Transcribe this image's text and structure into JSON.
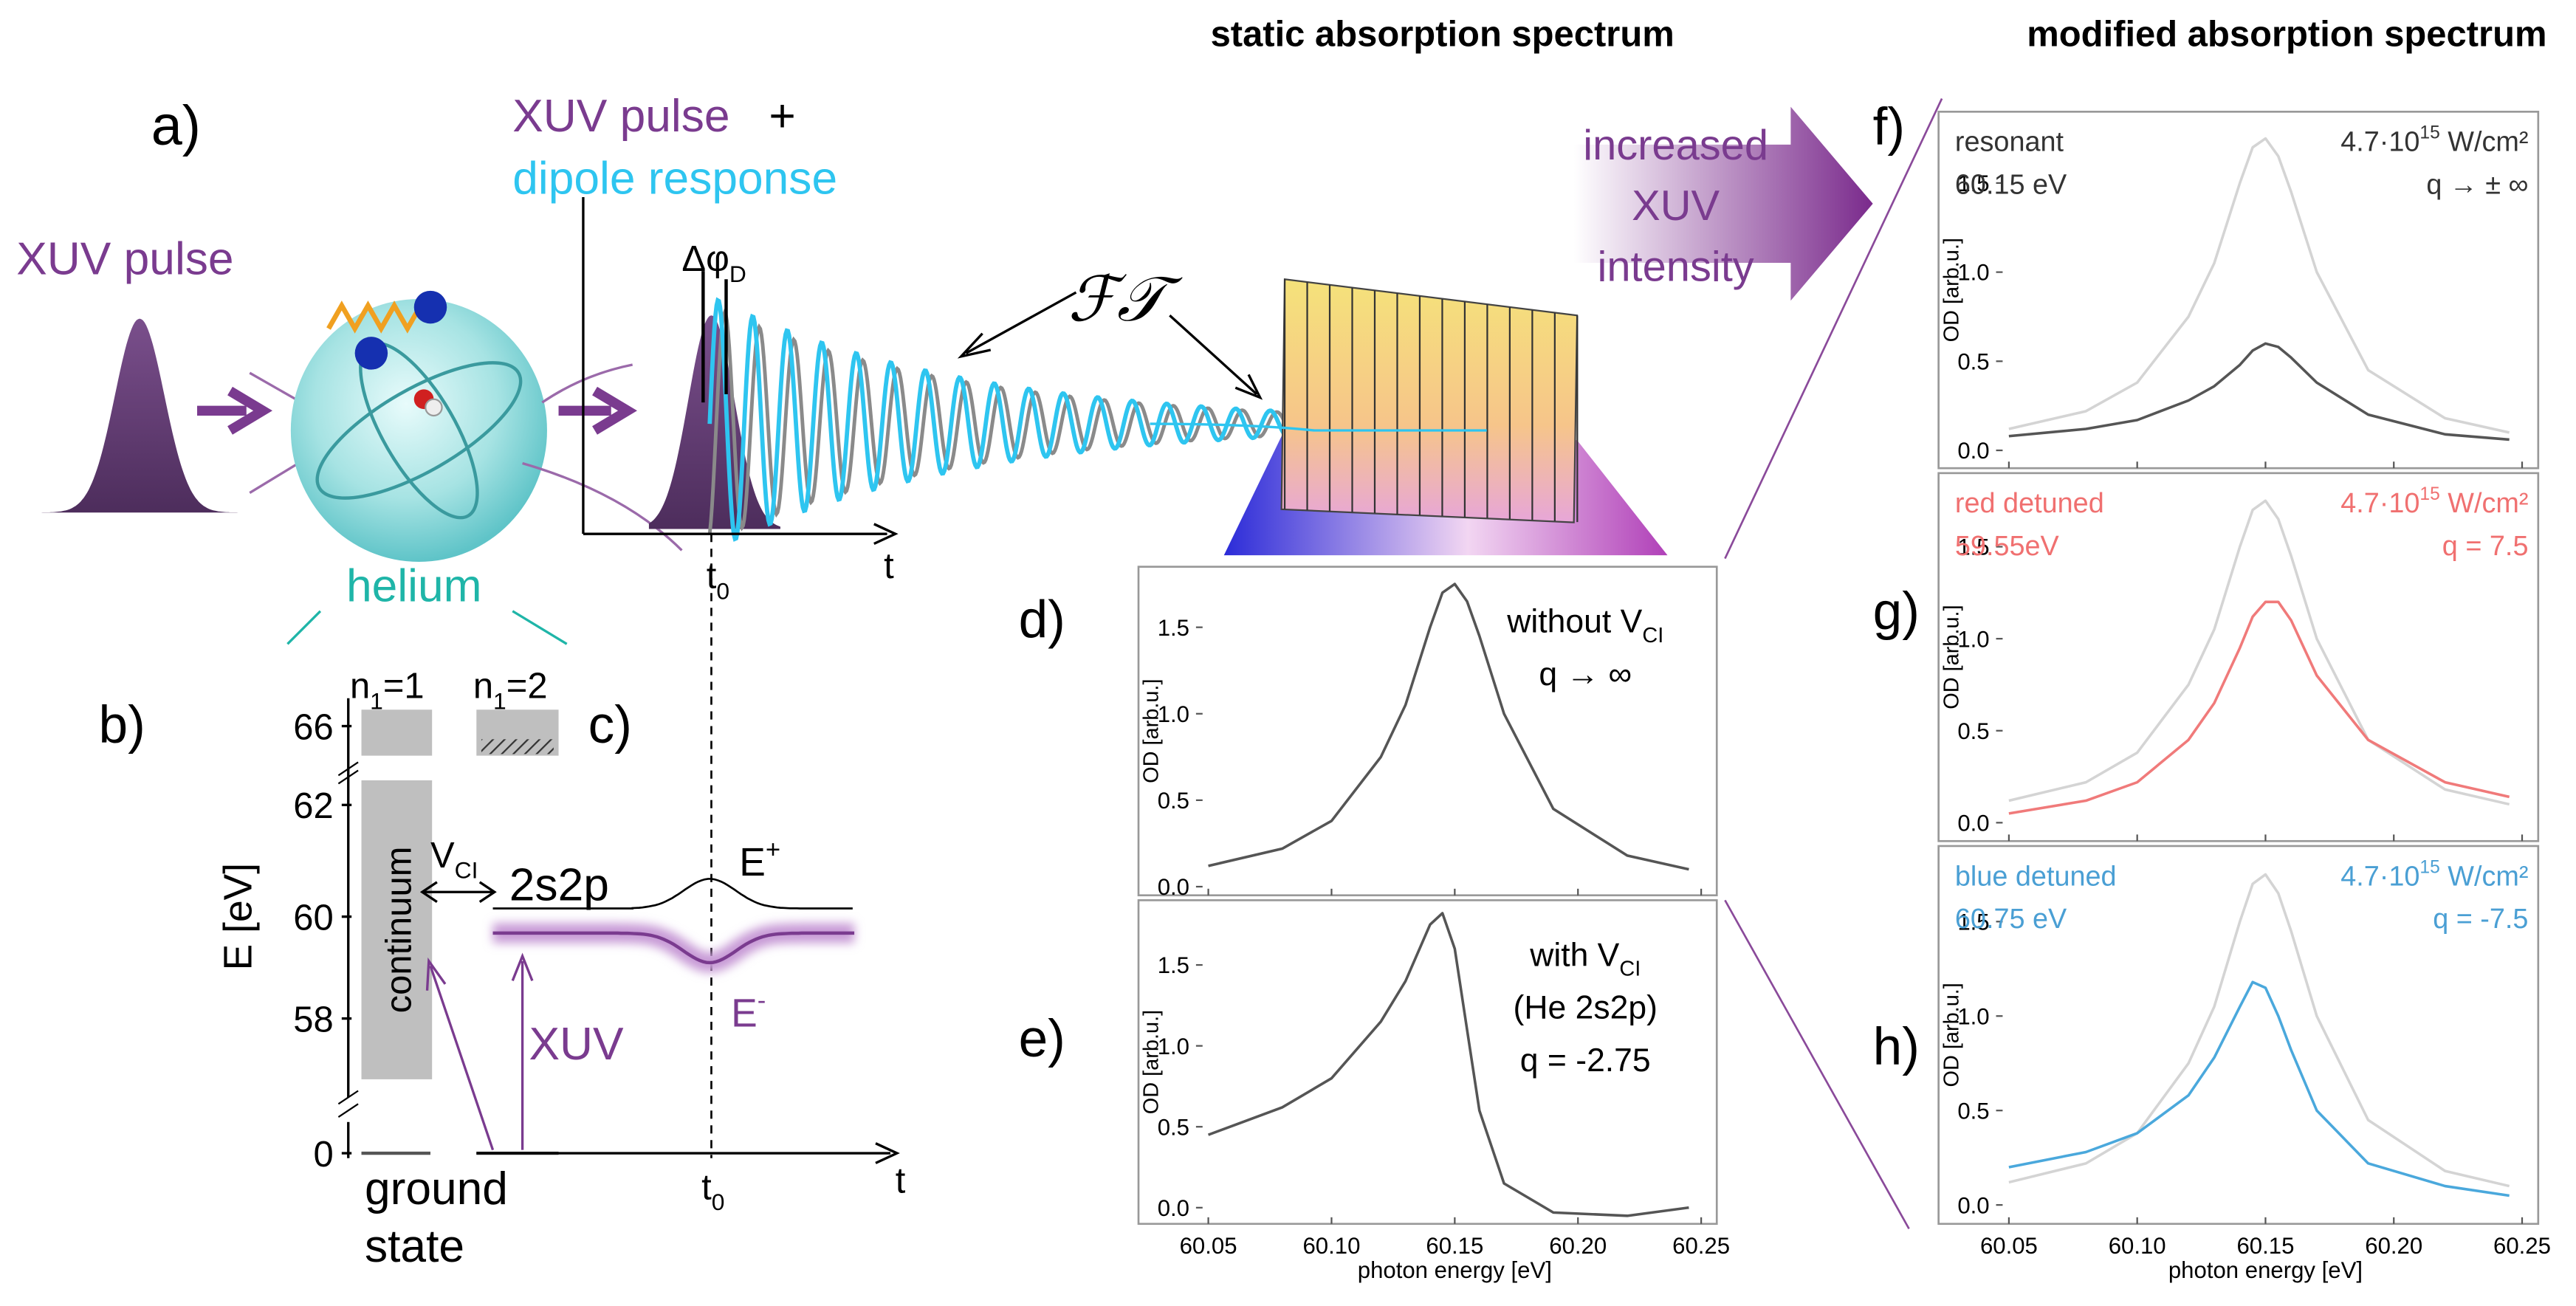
{
  "headings": {
    "static": "static absorption spectrum",
    "modified": "modified absorption spectrum"
  },
  "panel_a": {
    "label": "a)",
    "xuv_pulse": "XUV pulse",
    "xuv_pulse_2": "XUV pulse",
    "plus": "+",
    "dipole_response": "dipole response",
    "delta_phi": [
      {
        "text": "Δφ"
      },
      {
        "text": "D",
        "shift": "sub"
      }
    ],
    "t0": [
      {
        "text": "t"
      },
      {
        "text": "0",
        "shift": "sub"
      }
    ],
    "t": "t",
    "helium": "helium",
    "ft": "ℱ𝒯"
  },
  "arrow": {
    "lines": [
      "increased",
      "XUV",
      "intensity"
    ]
  },
  "panel_b": {
    "label": "b)",
    "axis_label": "E [eV]",
    "ticks": [
      66,
      62,
      60,
      58,
      0
    ],
    "n1_1": [
      {
        "text": "n"
      },
      {
        "text": "1",
        "shift": "sub"
      },
      {
        "text": "=1"
      }
    ],
    "n1_2": [
      {
        "text": "n"
      },
      {
        "text": "1",
        "shift": "sub"
      },
      {
        "text": "=2"
      }
    ],
    "continuum": "continuum",
    "ground": [
      "ground",
      "state"
    ]
  },
  "panel_c": {
    "label": "c)",
    "vci": [
      {
        "text": "V"
      },
      {
        "text": "CI",
        "shift": "sub"
      }
    ],
    "state": "2s2p",
    "e_plus": [
      {
        "text": "E"
      },
      {
        "text": "+",
        "shift": "sup"
      }
    ],
    "e_minus": [
      {
        "text": "E"
      },
      {
        "text": "-",
        "shift": "sup"
      }
    ],
    "xuv": "XUV",
    "t0": [
      {
        "text": "t"
      },
      {
        "text": "0",
        "shift": "sub"
      }
    ],
    "t": "t"
  },
  "spectra": {
    "xlim": [
      60.045,
      60.255
    ],
    "xticks": [
      60.05,
      {
        "value": 60.1,
        "label": "60.10"
      },
      60.15,
      {
        "value": 60.2,
        "label": "60.20"
      },
      60.25
    ],
    "yticks": [
      {
        "value": 0,
        "label": "0.0"
      },
      0.5,
      {
        "value": 1,
        "label": "1.0"
      },
      1.5
    ],
    "ylabel": "OD [arb.u.]",
    "xlabel": "photon energy  [eV]",
    "x": [
      60.05,
      60.08,
      60.1,
      60.12,
      60.13,
      60.14,
      60.145,
      60.15,
      60.155,
      60.16,
      60.17,
      60.19,
      60.22,
      60.245
    ],
    "panels": [
      {
        "label": "d)",
        "ylim": [
          -0.05,
          1.85
        ],
        "xtick_labels": false,
        "notes": [
          [
            {
              "text": "without V"
            },
            {
              "text": "CI",
              "shift": "sub"
            }
          ],
          [
            {
              "text": "q → ∞"
            }
          ]
        ],
        "series": [
          {
            "color": "#555555",
            "values": [
              0.12,
              0.22,
              0.38,
              0.75,
              1.05,
              1.5,
              1.7,
              1.75,
              1.65,
              1.45,
              1.0,
              0.45,
              0.18,
              0.1
            ]
          }
        ]
      },
      {
        "label": "e)",
        "ylim": [
          -0.1,
          1.9
        ],
        "xtick_labels": true,
        "notes": [
          [
            {
              "text": "with V"
            },
            {
              "text": "CI",
              "shift": "sub"
            }
          ],
          [
            {
              "text": "(He 2s2p)"
            }
          ],
          [
            {
              "text": "q = -2.75"
            }
          ]
        ],
        "series": [
          {
            "color": "#555555",
            "values": [
              0.45,
              0.62,
              0.8,
              1.15,
              1.4,
              1.75,
              1.82,
              1.6,
              1.1,
              0.6,
              0.15,
              -0.03,
              -0.05,
              0.0
            ]
          }
        ]
      },
      {
        "label": "f)",
        "ylim": [
          -0.1,
          1.9
        ],
        "xtick_labels": false,
        "note_color": "#333333",
        "notes_left": [
          [
            {
              "text": "resonant"
            }
          ],
          [
            {
              "text": "60.15 eV"
            }
          ]
        ],
        "notes_right": [
          [
            {
              "text": "4.7·10"
            },
            {
              "text": "15",
              "shift": "sup"
            },
            {
              "text": " W/cm²"
            }
          ],
          [
            {
              "text": "q → ± ∞"
            }
          ]
        ],
        "series": [
          {
            "color": "#d4d4d4",
            "values": [
              0.12,
              0.22,
              0.38,
              0.75,
              1.05,
              1.5,
              1.7,
              1.75,
              1.65,
              1.45,
              1.0,
              0.45,
              0.18,
              0.1
            ]
          },
          {
            "color": "#555555",
            "values": [
              0.08,
              0.12,
              0.17,
              0.28,
              0.36,
              0.48,
              0.56,
              0.6,
              0.58,
              0.52,
              0.38,
              0.2,
              0.09,
              0.06
            ]
          }
        ]
      },
      {
        "label": "g)",
        "ylim": [
          -0.1,
          1.9
        ],
        "xtick_labels": false,
        "note_color": "#f07070",
        "notes_left": [
          [
            {
              "text": "red detuned"
            }
          ],
          [
            {
              "text": "59.55eV"
            }
          ]
        ],
        "notes_right": [
          [
            {
              "text": "4.7·10"
            },
            {
              "text": "15",
              "shift": "sup"
            },
            {
              "text": " W/cm²"
            }
          ],
          [
            {
              "text": "q = 7.5"
            }
          ]
        ],
        "series": [
          {
            "color": "#d4d4d4",
            "values": [
              0.12,
              0.22,
              0.38,
              0.75,
              1.05,
              1.5,
              1.7,
              1.75,
              1.65,
              1.45,
              1.0,
              0.45,
              0.18,
              0.1
            ]
          },
          {
            "color": "#f07a7a",
            "values": [
              0.05,
              0.12,
              0.22,
              0.45,
              0.65,
              0.95,
              1.12,
              1.2,
              1.2,
              1.1,
              0.8,
              0.45,
              0.22,
              0.14
            ]
          }
        ]
      },
      {
        "label": "h)",
        "ylim": [
          -0.1,
          1.9
        ],
        "xtick_labels": true,
        "note_color": "#4a9fd4",
        "notes_left": [
          [
            {
              "text": "blue detuned"
            }
          ],
          [
            {
              "text": "60.75 eV"
            }
          ]
        ],
        "notes_right": [
          [
            {
              "text": "4.7·10"
            },
            {
              "text": "15",
              "shift": "sup"
            },
            {
              "text": " W/cm²"
            }
          ],
          [
            {
              "text": "q = -7.5"
            }
          ]
        ],
        "series": [
          {
            "color": "#d4d4d4",
            "values": [
              0.12,
              0.22,
              0.38,
              0.75,
              1.05,
              1.5,
              1.7,
              1.75,
              1.65,
              1.45,
              1.0,
              0.45,
              0.18,
              0.1
            ]
          },
          {
            "color": "#4aa8dc",
            "values": [
              0.2,
              0.28,
              0.38,
              0.58,
              0.78,
              1.05,
              1.18,
              1.15,
              1.0,
              0.82,
              0.5,
              0.22,
              0.1,
              0.05
            ]
          }
        ]
      }
    ]
  }
}
